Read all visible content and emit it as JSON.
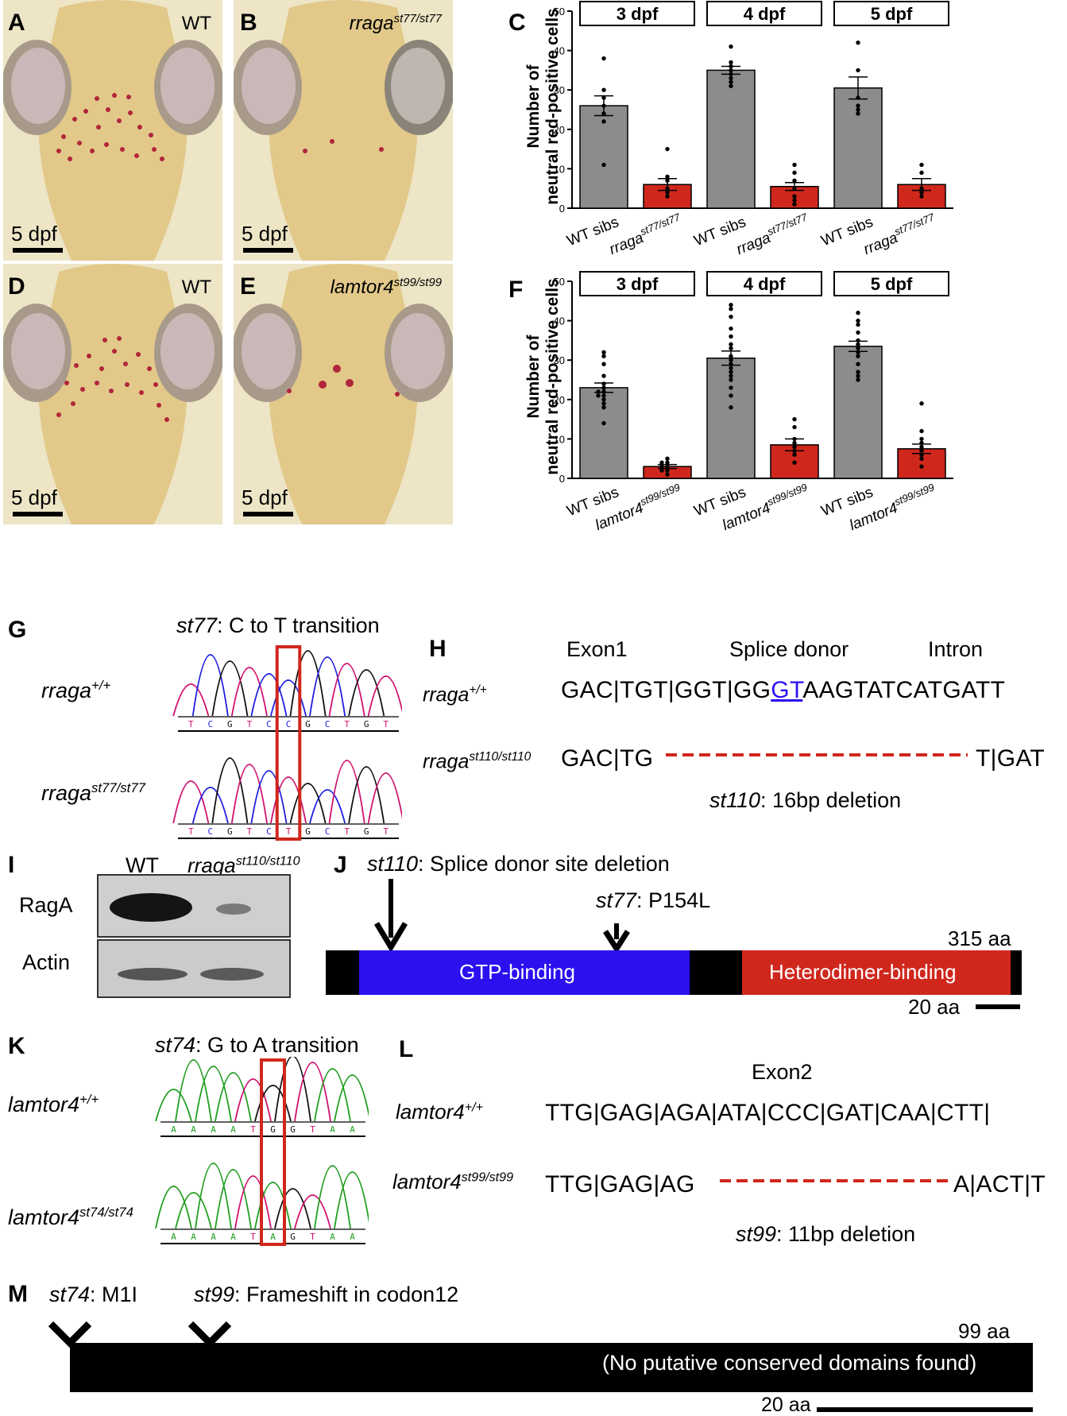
{
  "panels": {
    "A": {
      "letter": "A",
      "genotype": "WT",
      "stage": "5 dpf"
    },
    "B": {
      "letter": "B",
      "genotype": "rraga",
      "genotype_sup": "st77/st77",
      "stage": "5 dpf"
    },
    "D": {
      "letter": "D",
      "genotype": "WT",
      "stage": "5 dpf"
    },
    "E": {
      "letter": "E",
      "genotype": "lamtor4",
      "genotype_sup": "st99/st99",
      "stage": "5 dpf"
    }
  },
  "chart_data": [
    {
      "panel": "C",
      "type": "bar",
      "ylabel": "Number of neutral red-positive cells",
      "ylim": [
        0,
        50
      ],
      "yticks": [
        0,
        10,
        20,
        30,
        40,
        50
      ],
      "groups": [
        "3 dpf",
        "4 dpf",
        "5 dpf"
      ],
      "categories": [
        "WT sibs",
        "rraga st77/st77",
        "WT sibs",
        "rraga st77/st77",
        "WT sibs",
        "rraga st77/st77"
      ],
      "cat_main": [
        "WT sibs",
        "rraga",
        "WT sibs",
        "rraga",
        "WT sibs",
        "rraga"
      ],
      "cat_sup": [
        "",
        "st77/st77",
        "",
        "st77/st77",
        "",
        "st77/st77"
      ],
      "values": [
        26,
        6,
        35,
        5.5,
        30.5,
        6
      ],
      "sem": [
        2.5,
        1.5,
        1,
        1,
        2.8,
        1.5
      ],
      "colors": [
        "#8c8c8c",
        "#d0271d",
        "#8c8c8c",
        "#d0271d",
        "#8c8c8c",
        "#d0271d"
      ],
      "points": [
        [
          38,
          30,
          28,
          26,
          24,
          22,
          11
        ],
        [
          15,
          8,
          7,
          5,
          4,
          3
        ],
        [
          41,
          37,
          36,
          35,
          34,
          33,
          32,
          31
        ],
        [
          11,
          9,
          7,
          5,
          3,
          2,
          1
        ],
        [
          42,
          35,
          28,
          26,
          25,
          24
        ],
        [
          11,
          9,
          5,
          4,
          3
        ]
      ]
    },
    {
      "panel": "F",
      "type": "bar",
      "ylabel": "Number of neutral red-positive cells",
      "ylim": [
        0,
        50
      ],
      "yticks": [
        0,
        10,
        20,
        30,
        40,
        50
      ],
      "groups": [
        "3 dpf",
        "4 dpf",
        "5 dpf"
      ],
      "categories": [
        "WT sibs",
        "lamtor4 st99/st99",
        "WT sibs",
        "lamtor4 st99/st99",
        "WT sibs",
        "lamtor4 st99/st99"
      ],
      "cat_main": [
        "WT sibs",
        "lamtor4",
        "WT sibs",
        "lamtor4",
        "WT sibs",
        "lamtor4"
      ],
      "cat_sup": [
        "",
        "st99/st99",
        "",
        "st99/st99",
        "",
        "st99/st99"
      ],
      "values": [
        23,
        3,
        30.5,
        8.5,
        33.5,
        7.5
      ],
      "sem": [
        1.2,
        0.5,
        1.8,
        1.5,
        1.3,
        1.2
      ],
      "colors": [
        "#8c8c8c",
        "#d0271d",
        "#8c8c8c",
        "#d0271d",
        "#8c8c8c",
        "#d0271d"
      ],
      "points": [
        [
          32,
          31,
          29,
          26,
          24,
          23,
          22,
          22,
          21,
          21,
          20,
          19,
          18,
          14
        ],
        [
          5,
          4,
          4,
          3,
          3,
          2,
          2,
          1
        ],
        [
          44,
          43,
          41,
          38,
          36,
          34,
          33,
          31,
          30,
          29,
          28,
          27,
          26,
          25,
          23,
          21,
          18
        ],
        [
          15,
          13,
          10,
          9,
          8,
          7,
          6,
          4
        ],
        [
          42,
          40,
          39,
          37,
          35,
          34,
          33,
          32,
          31,
          29,
          27,
          26,
          25
        ],
        [
          19,
          12,
          10,
          9,
          8,
          7,
          6,
          5,
          3
        ]
      ]
    }
  ],
  "G": {
    "letter": "G",
    "title_it": "st77",
    "title_rest": ": C to T transition",
    "row1_gene": "rraga",
    "row1_sup": "+/+",
    "row2_gene": "rraga",
    "row2_sup": "st77/st77",
    "seq1": [
      "T",
      "C",
      "G",
      "T",
      "C",
      "C",
      "G",
      "C",
      "T",
      "G",
      "T"
    ],
    "seq2": [
      "T",
      "C",
      "G",
      "T",
      "C",
      "T",
      "G",
      "C",
      "T",
      "G",
      "T"
    ]
  },
  "H": {
    "letter": "H",
    "h_exon": "Exon1",
    "h_splice": "Splice donor",
    "h_intron": "Intron",
    "wt_gene": "rraga",
    "wt_sup": "+/+",
    "wt_seq_a": "GAC|TGT|GGT|GG",
    "wt_seq_gt": "GT",
    "wt_seq_b": "AAGTATCATGATT",
    "mut_gene": "rraga",
    "mut_sup": "st110/st110",
    "mut_seq_a": "GAC|TG",
    "mut_seq_b": "T|GAT",
    "note_it": "st110",
    "note_rest": ": 16bp deletion"
  },
  "I": {
    "letter": "I",
    "lane1": "WT",
    "lane2_gene": "rraga",
    "lane2_sup": "st110/st110",
    "band1": "RagA",
    "band2": "Actin"
  },
  "J": {
    "letter": "J",
    "ann1_it": "st110",
    "ann1_rest": ": Splice donor site deletion",
    "ann2_it": "st77",
    "ann2_rest": ": P154L",
    "length": "315 aa",
    "domain1": "GTP-binding",
    "domain2": "Heterodimer-binding",
    "scale": "20 aa",
    "color_gtp": "#2b10f0",
    "color_het": "#d0271d"
  },
  "K": {
    "letter": "K",
    "title_it": "st74",
    "title_rest": ": G to A transition",
    "row1_gene": "lamtor4",
    "row1_sup": "+/+",
    "row2_gene": "lamtor4",
    "row2_sup": "st74/st74",
    "seq1": [
      "A",
      "A",
      "A",
      "A",
      "T",
      "G",
      "G",
      "T",
      "A",
      "A"
    ],
    "seq2": [
      "A",
      "A",
      "A",
      "A",
      "T",
      "A",
      "G",
      "T",
      "A",
      "A"
    ]
  },
  "L": {
    "letter": "L",
    "exon": "Exon2",
    "wt_gene": "lamtor4",
    "wt_sup": "+/+",
    "wt_seq": "TTG|GAG|AGA|ATA|CCC|GAT|CAA|CTT|",
    "mut_gene": "lamtor4",
    "mut_sup": "st99/st99",
    "mut_seq_a": "TTG|GAG|AG",
    "mut_seq_b": "A|ACT|T",
    "note_it": "st99",
    "note_rest": ": 11bp deletion"
  },
  "M": {
    "letter": "M",
    "ann1_it": "st74",
    "ann1_rest": ": M1I",
    "ann2_it": "st99",
    "ann2_rest": ": Frameshift in codon12",
    "length": "99 aa",
    "domain_text": "(No putative conserved domains found)",
    "scale": "20 aa"
  }
}
